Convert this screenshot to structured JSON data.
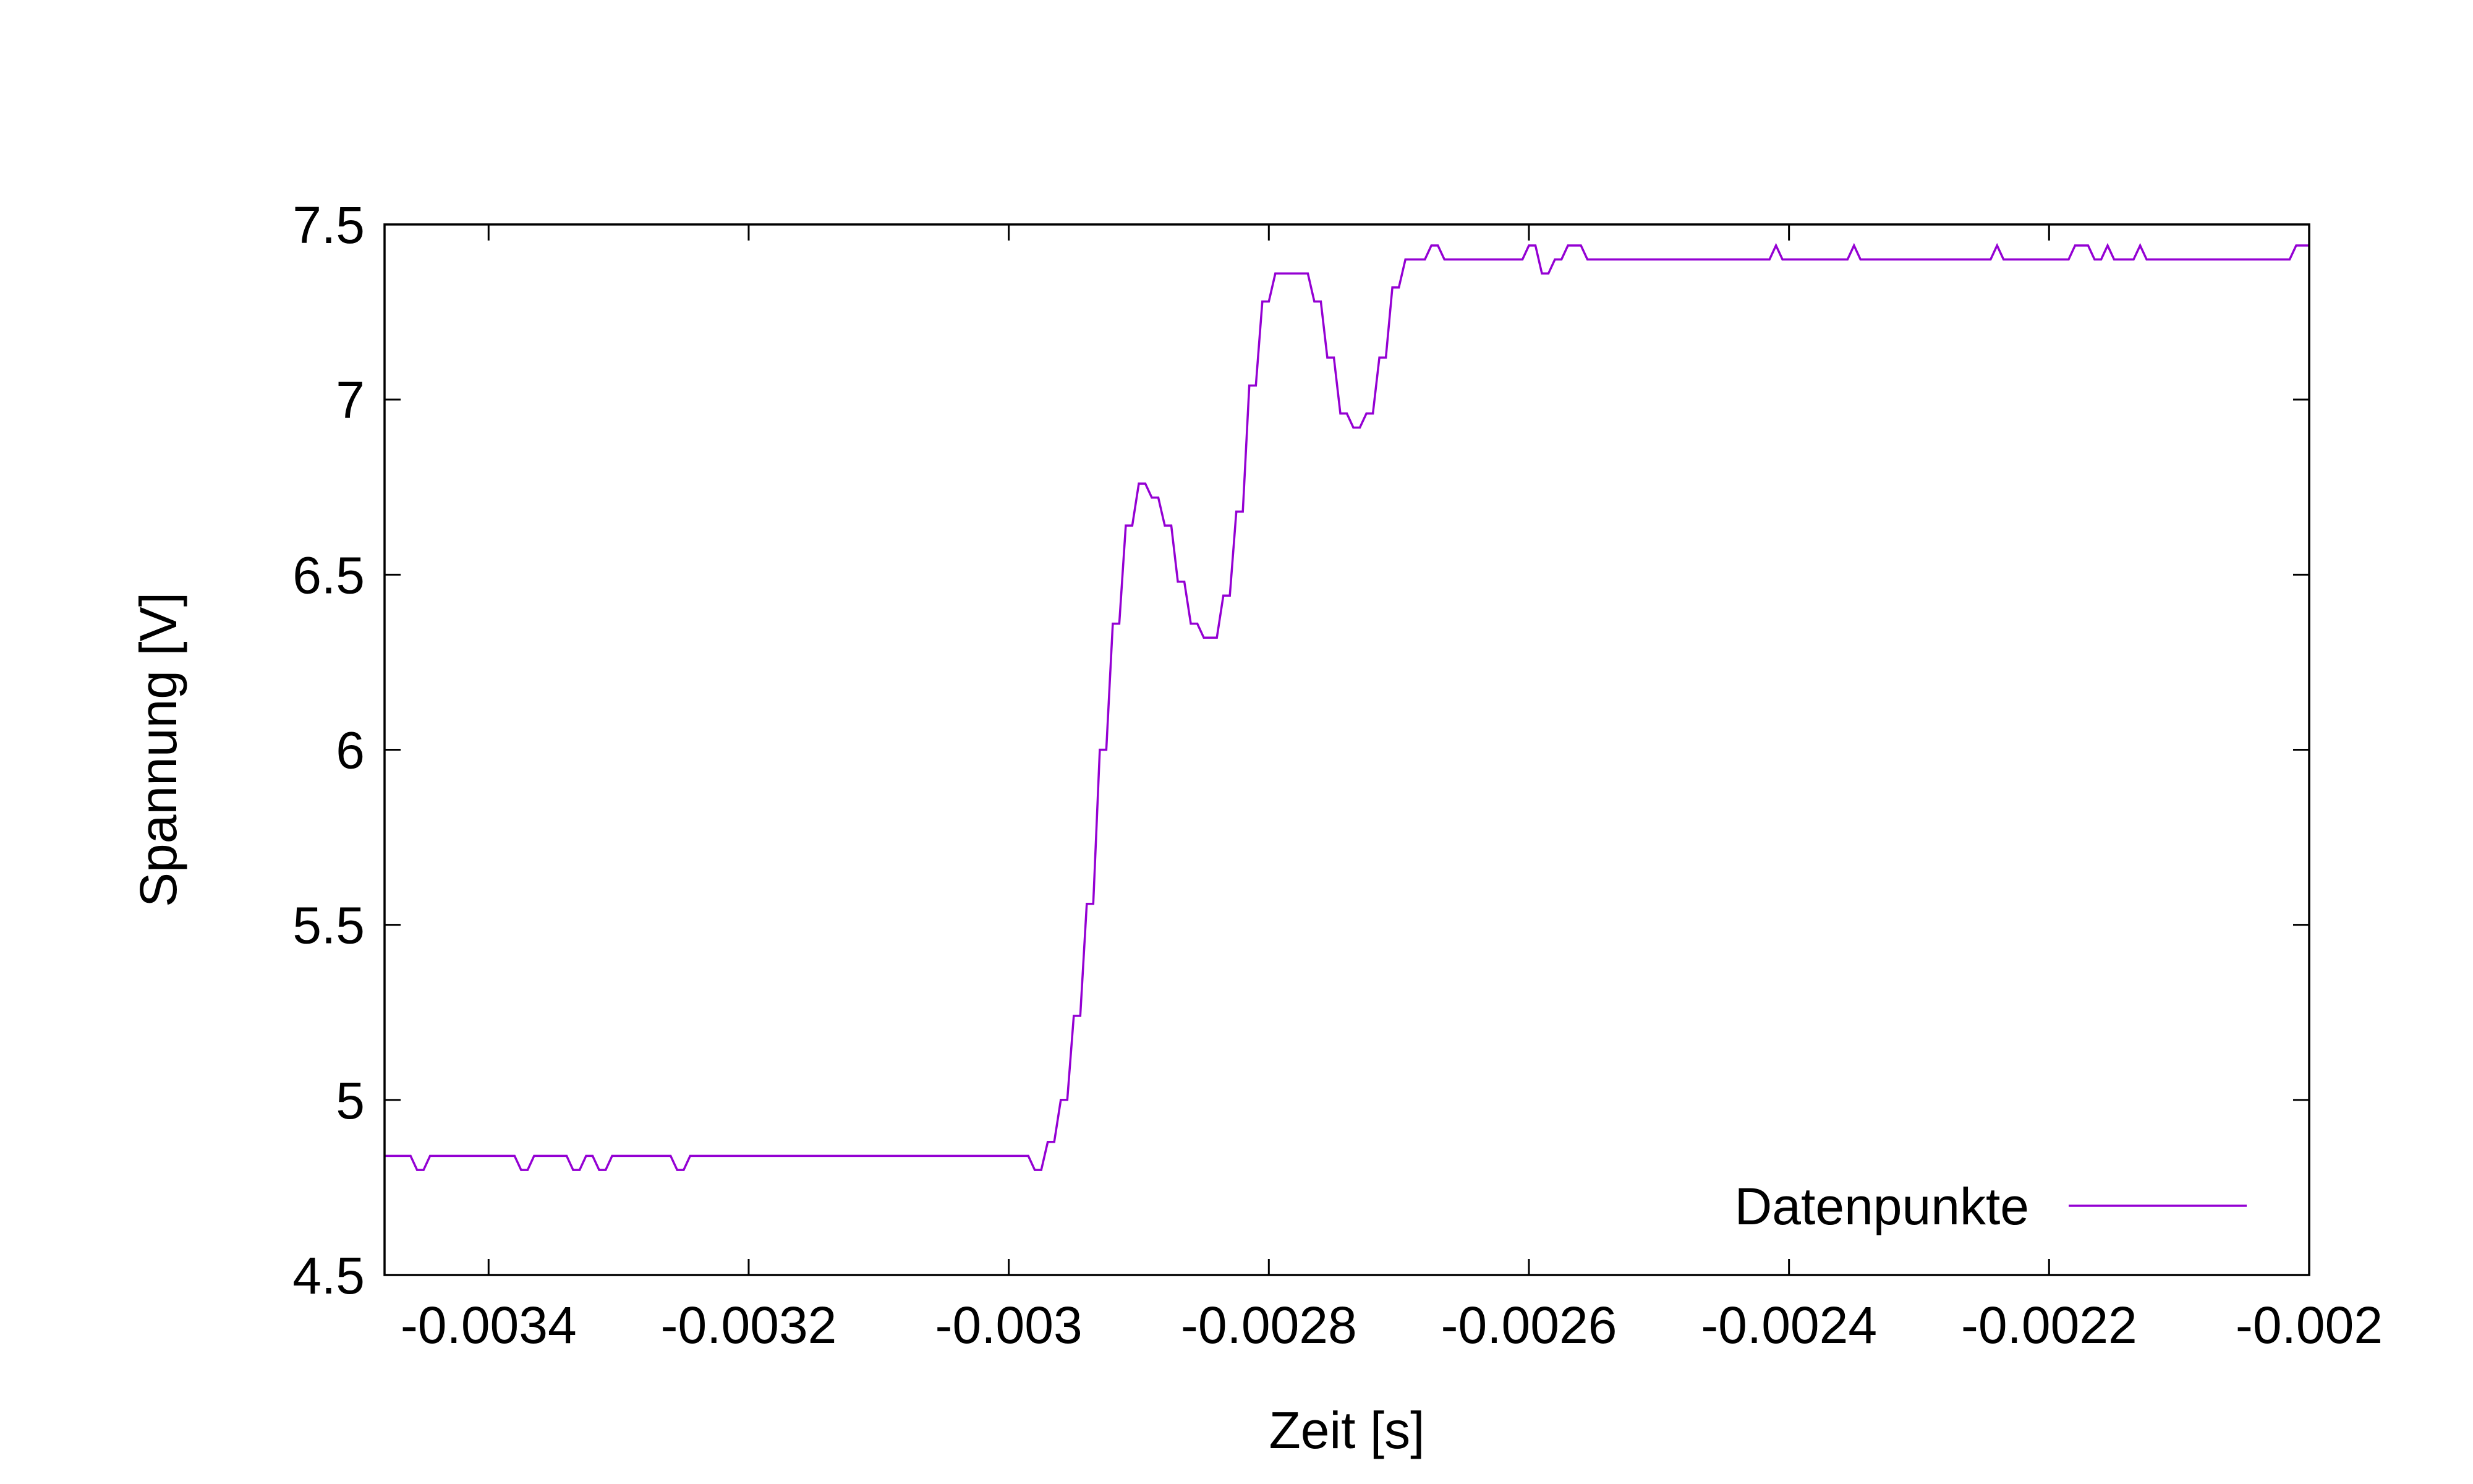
{
  "chart_data": {
    "type": "line",
    "xlabel": "Zeit [s]",
    "ylabel": "Spannung [V]",
    "xlim": [
      -0.00348,
      -0.002
    ],
    "ylim": [
      4.5,
      7.5
    ],
    "xticks": [
      -0.0034,
      -0.0032,
      -0.003,
      -0.0028,
      -0.0026,
      -0.0024,
      -0.0022,
      -0.002
    ],
    "xtick_labels": [
      "-0.0034",
      "-0.0032",
      "-0.003",
      "-0.0028",
      "-0.0026",
      "-0.0024",
      "-0.0022",
      "-0.002"
    ],
    "yticks": [
      4.5,
      5,
      5.5,
      6,
      6.5,
      7,
      7.5
    ],
    "ytick_labels": [
      "4.5",
      "5",
      "5.5",
      "6",
      "6.5",
      "7",
      "7.5"
    ],
    "grid": false,
    "legend_position": "bottom-right",
    "series": [
      {
        "name": "Datenpunkte",
        "color": "#9400d3",
        "points": [
          [
            -0.00348,
            4.84
          ],
          [
            -0.00346,
            4.84
          ],
          [
            -0.003455,
            4.8
          ],
          [
            -0.00345,
            4.8
          ],
          [
            -0.003445,
            4.84
          ],
          [
            -0.00338,
            4.84
          ],
          [
            -0.003375,
            4.8
          ],
          [
            -0.00337,
            4.8
          ],
          [
            -0.003365,
            4.84
          ],
          [
            -0.00334,
            4.84
          ],
          [
            -0.003335,
            4.8
          ],
          [
            -0.00333,
            4.8
          ],
          [
            -0.003325,
            4.84
          ],
          [
            -0.00332,
            4.84
          ],
          [
            -0.003315,
            4.8
          ],
          [
            -0.00331,
            4.8
          ],
          [
            -0.003305,
            4.84
          ],
          [
            -0.00326,
            4.84
          ],
          [
            -0.003255,
            4.8
          ],
          [
            -0.00325,
            4.8
          ],
          [
            -0.003245,
            4.84
          ],
          [
            -0.002985,
            4.84
          ],
          [
            -0.00298,
            4.8
          ],
          [
            -0.002975,
            4.8
          ],
          [
            -0.00297,
            4.88
          ],
          [
            -0.002965,
            4.88
          ],
          [
            -0.00296,
            5.0
          ],
          [
            -0.002955,
            5.0
          ],
          [
            -0.00295,
            5.24
          ],
          [
            -0.002945,
            5.24
          ],
          [
            -0.00294,
            5.56
          ],
          [
            -0.002935,
            5.56
          ],
          [
            -0.00293,
            6.0
          ],
          [
            -0.002925,
            6.0
          ],
          [
            -0.00292,
            6.36
          ],
          [
            -0.002915,
            6.36
          ],
          [
            -0.00291,
            6.64
          ],
          [
            -0.002905,
            6.64
          ],
          [
            -0.0029,
            6.76
          ],
          [
            -0.002895,
            6.76
          ],
          [
            -0.00289,
            6.72
          ],
          [
            -0.002885,
            6.72
          ],
          [
            -0.00288,
            6.64
          ],
          [
            -0.002875,
            6.64
          ],
          [
            -0.00287,
            6.48
          ],
          [
            -0.002865,
            6.48
          ],
          [
            -0.00286,
            6.36
          ],
          [
            -0.002855,
            6.36
          ],
          [
            -0.00285,
            6.32
          ],
          [
            -0.00284,
            6.32
          ],
          [
            -0.002835,
            6.44
          ],
          [
            -0.00283,
            6.44
          ],
          [
            -0.002825,
            6.68
          ],
          [
            -0.00282,
            6.68
          ],
          [
            -0.002815,
            7.04
          ],
          [
            -0.00281,
            7.04
          ],
          [
            -0.002805,
            7.28
          ],
          [
            -0.0028,
            7.28
          ],
          [
            -0.002795,
            7.36
          ],
          [
            -0.00277,
            7.36
          ],
          [
            -0.002765,
            7.28
          ],
          [
            -0.00276,
            7.28
          ],
          [
            -0.002755,
            7.12
          ],
          [
            -0.00275,
            7.12
          ],
          [
            -0.002745,
            6.96
          ],
          [
            -0.00274,
            6.96
          ],
          [
            -0.002735,
            6.92
          ],
          [
            -0.00273,
            6.92
          ],
          [
            -0.002725,
            6.96
          ],
          [
            -0.00272,
            6.96
          ],
          [
            -0.002715,
            7.12
          ],
          [
            -0.00271,
            7.12
          ],
          [
            -0.002705,
            7.32
          ],
          [
            -0.0027,
            7.32
          ],
          [
            -0.002695,
            7.4
          ],
          [
            -0.00268,
            7.4
          ],
          [
            -0.002675,
            7.44
          ],
          [
            -0.00267,
            7.44
          ],
          [
            -0.002665,
            7.4
          ],
          [
            -0.002605,
            7.4
          ],
          [
            -0.0026,
            7.44
          ],
          [
            -0.002595,
            7.44
          ],
          [
            -0.00259,
            7.36
          ],
          [
            -0.002585,
            7.36
          ],
          [
            -0.00258,
            7.4
          ],
          [
            -0.002575,
            7.4
          ],
          [
            -0.00257,
            7.44
          ],
          [
            -0.00256,
            7.44
          ],
          [
            -0.002555,
            7.4
          ],
          [
            -0.002415,
            7.4
          ],
          [
            -0.00241,
            7.44
          ],
          [
            -0.002405,
            7.4
          ],
          [
            -0.002355,
            7.4
          ],
          [
            -0.00235,
            7.44
          ],
          [
            -0.002345,
            7.4
          ],
          [
            -0.002245,
            7.4
          ],
          [
            -0.00224,
            7.44
          ],
          [
            -0.002235,
            7.4
          ],
          [
            -0.002185,
            7.4
          ],
          [
            -0.00218,
            7.44
          ],
          [
            -0.00217,
            7.44
          ],
          [
            -0.002165,
            7.4
          ],
          [
            -0.00216,
            7.4
          ],
          [
            -0.002155,
            7.44
          ],
          [
            -0.00215,
            7.4
          ],
          [
            -0.002135,
            7.4
          ],
          [
            -0.00213,
            7.44
          ],
          [
            -0.002125,
            7.4
          ],
          [
            -0.002015,
            7.4
          ],
          [
            -0.00201,
            7.44
          ],
          [
            -0.002,
            7.44
          ]
        ]
      }
    ]
  }
}
